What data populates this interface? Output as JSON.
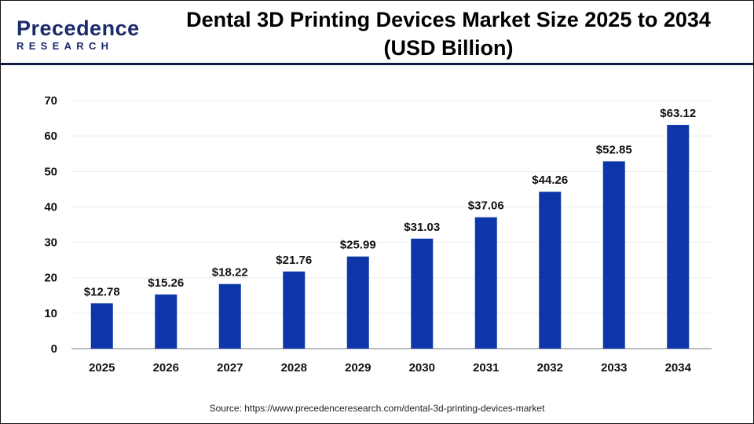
{
  "logo": {
    "line1": "Precedence",
    "line2": "RESEARCH"
  },
  "source": "Source: https://www.precedenceresearch.com/dental-3d-printing-devices-market",
  "colors": {
    "bar": "#0d37a8",
    "header_line": "#0f1a45",
    "logo": "#1a2a6c"
  },
  "chart_data": {
    "type": "bar",
    "title_line1": "Dental 3D Printing Devices Market Size 2025 to 2034",
    "title_line2": "(USD Billion)",
    "categories": [
      "2025",
      "2026",
      "2027",
      "2028",
      "2029",
      "2030",
      "2031",
      "2032",
      "2033",
      "2034"
    ],
    "values": [
      12.78,
      15.26,
      18.22,
      21.76,
      25.99,
      31.03,
      37.06,
      44.26,
      52.85,
      63.12
    ],
    "data_labels": [
      "$12.78",
      "$15.26",
      "$18.22",
      "$21.76",
      "$25.99",
      "$31.03",
      "$37.06",
      "$44.26",
      "$52.85",
      "$63.12"
    ],
    "yticks": [
      0,
      10,
      20,
      30,
      40,
      50,
      60,
      70
    ],
    "ylim": [
      0,
      70
    ],
    "grid": true,
    "legend": "none"
  }
}
